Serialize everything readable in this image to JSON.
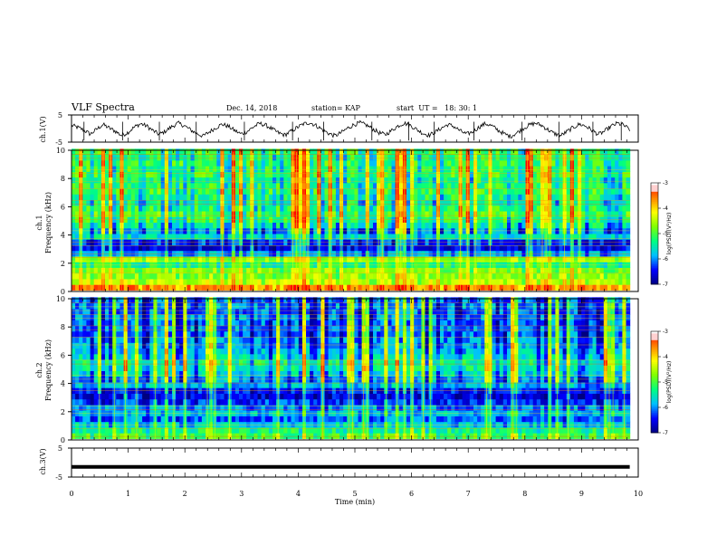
{
  "header": {
    "title": "VLF Spectra",
    "date": "Dec. 14, 2018",
    "station": "station= KAP",
    "start_time": "start  UT =   18: 30: 1"
  },
  "chart_data": [
    {
      "type": "line",
      "name": "ch1-waveform",
      "ylabel": "ch.1(V)",
      "ylim": [
        -5,
        5
      ],
      "yticks": [
        "5",
        "-5"
      ],
      "x_range": [
        0,
        10
      ],
      "samples_note": "",
      "y": [
        1.2,
        0.4,
        -0.6,
        -2.1,
        -0.3,
        1.5,
        0.2,
        -1.0,
        -2.6,
        -1.4,
        0.5,
        1.8,
        0.9,
        -0.8,
        -2.2,
        -0.9,
        0.7,
        2.0,
        1.0,
        -0.5,
        -1.9,
        -2.8,
        -1.2,
        0.3,
        1.6,
        0.8,
        -0.7,
        -2.0,
        -1.1,
        0.6,
        1.9,
        1.2,
        -0.2,
        -1.6,
        -2.4,
        -1.0,
        0.4,
        1.7,
        2.2,
        1.1,
        -0.4,
        -1.8,
        -2.7,
        -1.5,
        0.1,
        1.4,
        2.1,
        1.3,
        -0.1,
        -1.5,
        -2.3,
        -0.8,
        0.9,
        2.0,
        1.2,
        -0.3,
        -1.7,
        -2.5,
        -1.3,
        0.2,
        1.5,
        0.7,
        -0.9,
        -2.1,
        -1.2,
        0.6,
        1.8,
        1.0,
        -0.6,
        -2.0,
        -2.9,
        -1.6,
        0.0,
        1.3,
        2.0,
        1.1,
        -0.5,
        -1.9,
        -2.6,
        -1.1,
        0.4,
        1.6,
        0.9,
        -0.7,
        -2.2,
        -1.0,
        0.8,
        1.9,
        1.3,
        -0.4
      ],
      "spikes": [
        0.22,
        0.9,
        1.55,
        2.2,
        3.05,
        3.9,
        4.45,
        5.3,
        5.95,
        6.4,
        7.1,
        7.95,
        8.6,
        9.2,
        9.7
      ]
    },
    {
      "type": "heatmap",
      "name": "ch1-spectrogram",
      "ylabel": "ch.1\nFrequency (kHz)",
      "ylim": [
        0,
        10
      ],
      "yticks": [
        "0",
        "2",
        "4",
        "6",
        "8",
        "10"
      ],
      "xlim": [
        0,
        9.85
      ],
      "colorbar": {
        "label": "log(PSD)(V²/Hz)",
        "range": [
          -7,
          -3
        ],
        "ticks": [
          "-3",
          "-4",
          "-5",
          "-6",
          "-7"
        ]
      },
      "bands": [
        {
          "f": 0.3,
          "level": -3.6
        },
        {
          "f": 0.7,
          "level": -4.4
        },
        {
          "f": 1.1,
          "level": -4.6
        },
        {
          "f": 1.5,
          "level": -4.7
        },
        {
          "f": 1.9,
          "level": -5.2
        },
        {
          "f": 2.3,
          "level": -4.6
        },
        {
          "f": 2.7,
          "level": -5.9
        },
        {
          "f": 3.1,
          "level": -6.5
        },
        {
          "f": 3.5,
          "level": -6.3
        },
        {
          "f": 3.9,
          "level": -5.6
        },
        {
          "f": 4.3,
          "level": -5.9
        },
        {
          "f": 4.7,
          "level": -5.4
        },
        {
          "f": 5.1,
          "level": -5.1
        },
        {
          "f": 5.5,
          "level": -4.9
        },
        {
          "f": 5.9,
          "level": -5.1
        },
        {
          "f": 6.3,
          "level": -5.3
        },
        {
          "f": 6.7,
          "level": -5.2
        },
        {
          "f": 7.1,
          "level": -5.0
        },
        {
          "f": 7.5,
          "level": -5.1
        },
        {
          "f": 7.9,
          "level": -5.2
        },
        {
          "f": 8.3,
          "level": -5.0
        },
        {
          "f": 8.7,
          "level": -5.1
        },
        {
          "f": 9.1,
          "level": -5.0
        },
        {
          "f": 9.5,
          "level": -5.1
        },
        {
          "f": 9.9,
          "level": -5.0
        }
      ]
    },
    {
      "type": "heatmap",
      "name": "ch2-spectrogram",
      "ylabel": "ch.2\nFrequency (kHz)",
      "ylim": [
        0,
        10
      ],
      "yticks": [
        "0",
        "2",
        "4",
        "6",
        "8",
        "10"
      ],
      "xlim": [
        0,
        9.85
      ],
      "colorbar": {
        "label": "log(PSD)(V²/Hz)",
        "range": [
          -7,
          -3
        ],
        "ticks": [
          "-3",
          "-4",
          "-5",
          "-6",
          "-7"
        ]
      },
      "bands": [
        {
          "f": 0.3,
          "level": -5.0
        },
        {
          "f": 0.7,
          "level": -5.3
        },
        {
          "f": 1.1,
          "level": -5.7
        },
        {
          "f": 1.5,
          "level": -6.1
        },
        {
          "f": 1.9,
          "level": -5.8
        },
        {
          "f": 2.3,
          "level": -6.0
        },
        {
          "f": 2.7,
          "level": -6.3
        },
        {
          "f": 3.1,
          "level": -6.6
        },
        {
          "f": 3.5,
          "level": -6.4
        },
        {
          "f": 3.9,
          "level": -5.8
        },
        {
          "f": 4.3,
          "level": -5.9
        },
        {
          "f": 4.7,
          "level": -5.6
        },
        {
          "f": 5.1,
          "level": -5.4
        },
        {
          "f": 5.5,
          "level": -5.3
        },
        {
          "f": 5.9,
          "level": -5.6
        },
        {
          "f": 6.3,
          "level": -5.8
        },
        {
          "f": 6.7,
          "level": -5.9
        },
        {
          "f": 7.1,
          "level": -6.0
        },
        {
          "f": 7.5,
          "level": -6.1
        },
        {
          "f": 7.9,
          "level": -6.0
        },
        {
          "f": 8.3,
          "level": -6.1
        },
        {
          "f": 8.7,
          "level": -6.0
        },
        {
          "f": 9.1,
          "level": -6.1
        },
        {
          "f": 9.5,
          "level": -6.0
        },
        {
          "f": 9.9,
          "level": -6.1
        }
      ]
    },
    {
      "type": "line",
      "name": "ch3-signal",
      "ylabel": "ch.3(V)",
      "ylim": [
        -5,
        5
      ],
      "yticks": [
        "5",
        "-5"
      ],
      "x": [
        0,
        9.85
      ],
      "y": [
        -1.5,
        -1.5
      ]
    }
  ],
  "xaxis": {
    "label": "Time (min)",
    "ticks": [
      "0",
      "1",
      "2",
      "3",
      "4",
      "5",
      "6",
      "7",
      "8",
      "9",
      "10"
    ],
    "range": [
      0,
      10
    ]
  },
  "colors": {
    "colormap": [
      "#00007f",
      "#0000ff",
      "#00bfff",
      "#00ff80",
      "#80ff00",
      "#ffff00",
      "#ff8000",
      "#ff0000",
      "#ffffff"
    ]
  }
}
